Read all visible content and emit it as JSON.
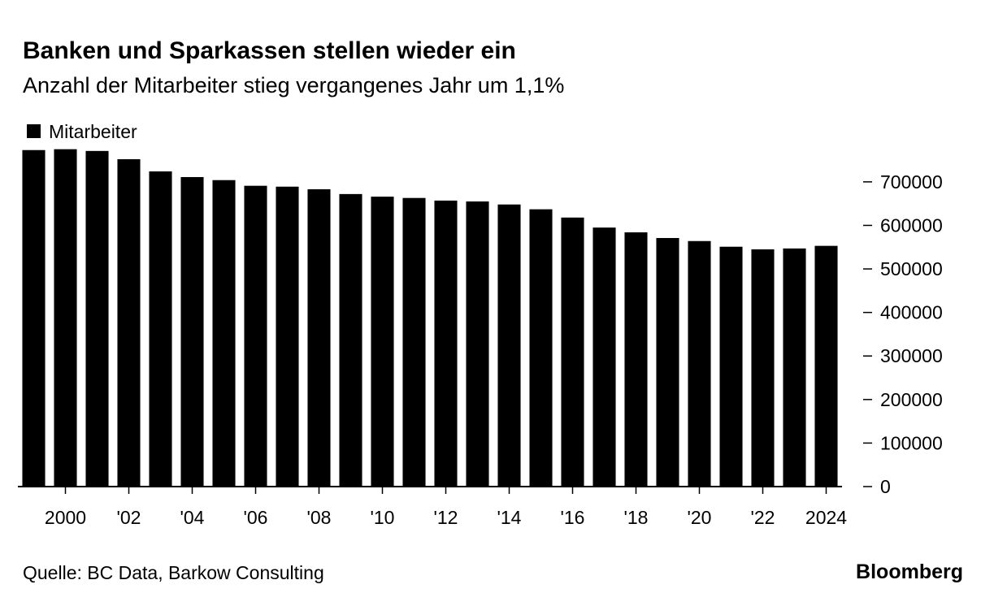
{
  "chart_data": {
    "type": "bar",
    "title": "Banken und Sparkassen stellen wieder ein",
    "subtitle": "Anzahl der Mitarbeiter stieg vergangenes Jahr um 1,1%",
    "source": "Quelle: BC Data, Barkow Consulting",
    "brand": "Bloomberg",
    "categories": [
      null,
      "2000",
      null,
      "'02",
      null,
      "'04",
      null,
      "'06",
      null,
      "'08",
      null,
      "'10",
      null,
      "'12",
      null,
      "'14",
      null,
      "'16",
      null,
      "'18",
      null,
      "'20",
      null,
      "'22",
      null,
      "2024"
    ],
    "series": [
      {
        "name": "Mitarbeiter",
        "color": "#000000",
        "values": [
          773000,
          775000,
          771000,
          752000,
          724000,
          711000,
          704000,
          691000,
          689000,
          683000,
          672000,
          666000,
          663000,
          657000,
          655000,
          648000,
          637000,
          618000,
          595000,
          584000,
          571000,
          564000,
          551000,
          545000,
          547000,
          553000
        ]
      }
    ],
    "ylim": [
      0,
      780000
    ],
    "yticks": [
      0,
      100000,
      200000,
      300000,
      400000,
      500000,
      600000,
      700000
    ],
    "legend": "top-left"
  }
}
